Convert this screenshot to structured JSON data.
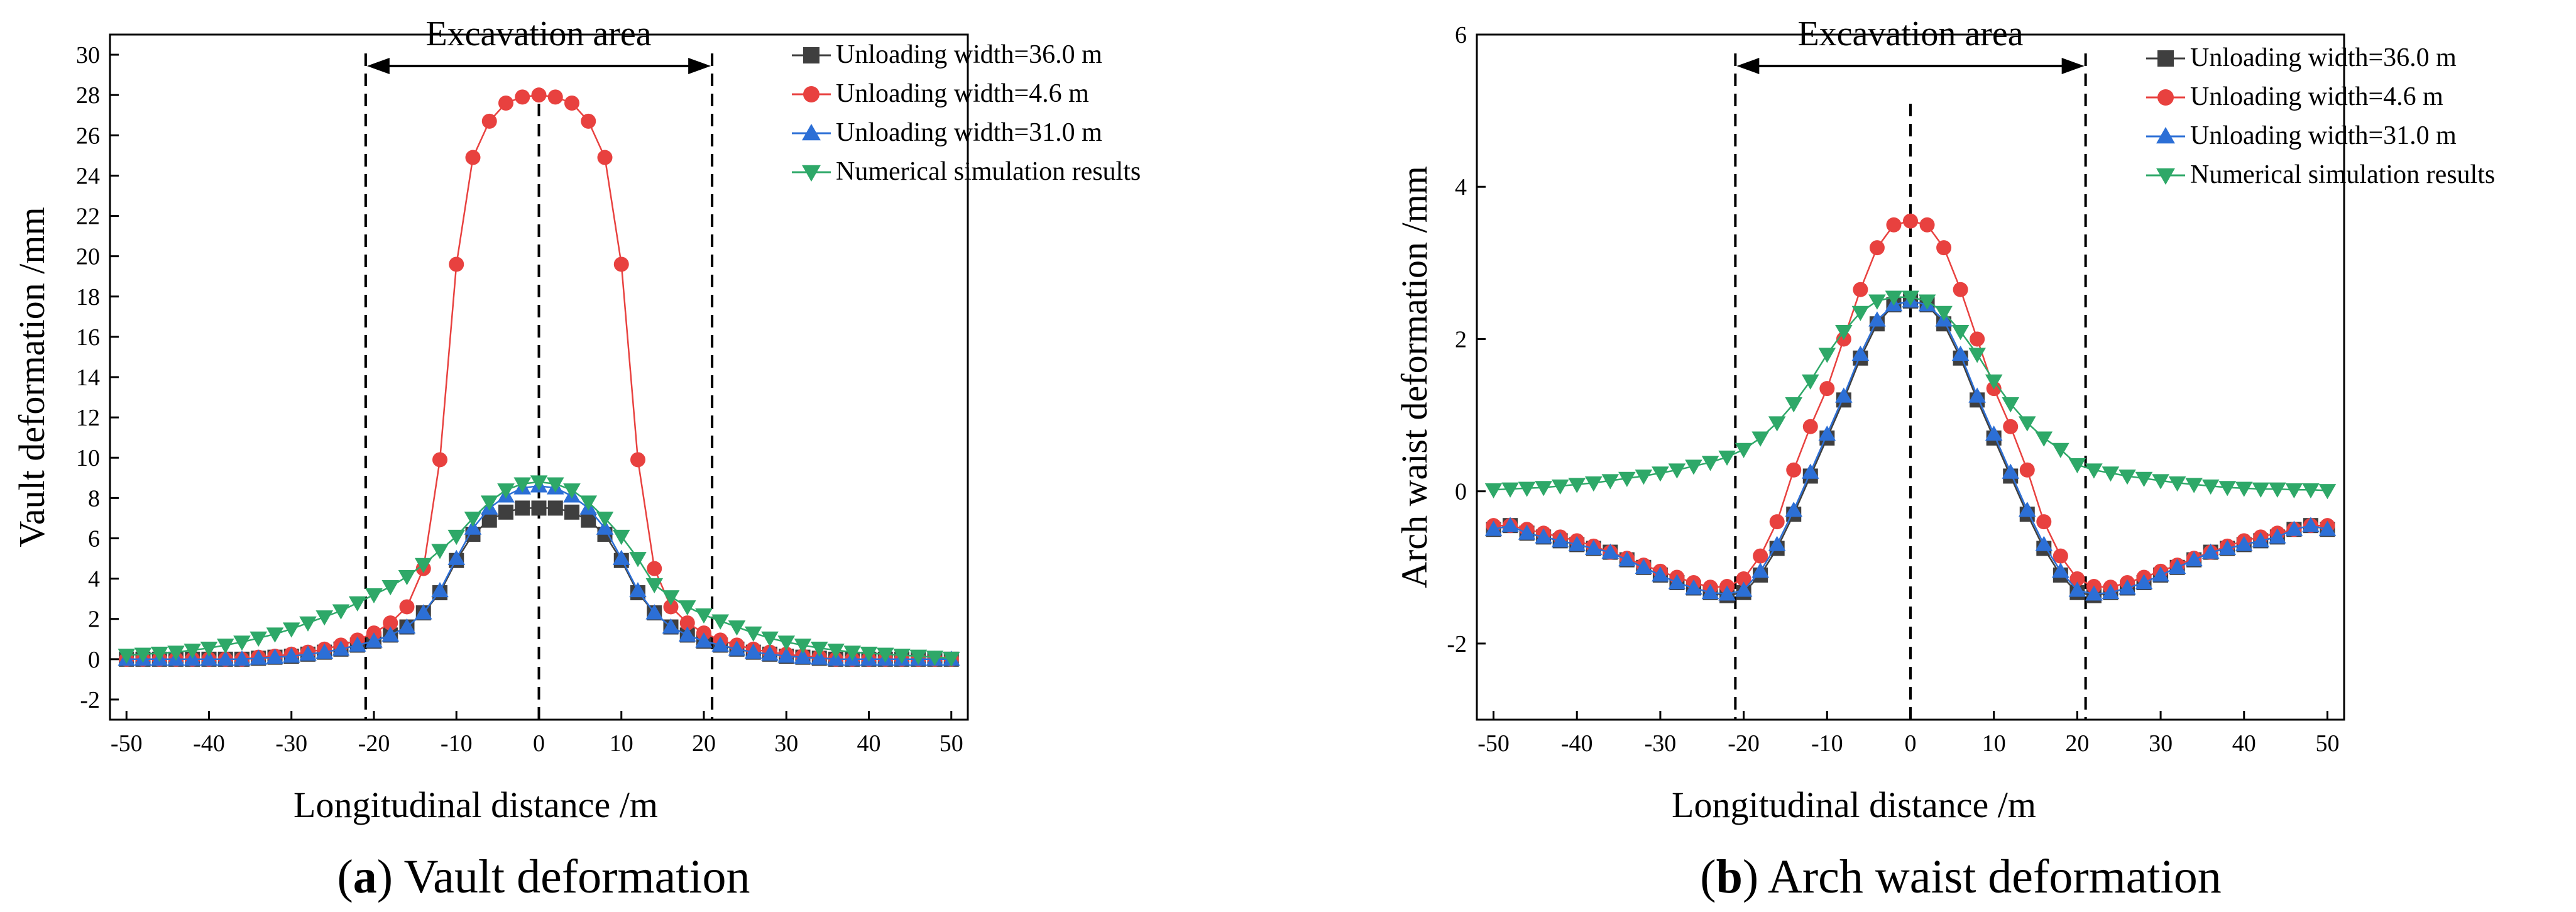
{
  "chart_data": [
    {
      "type": "line",
      "panel": "a",
      "caption_letter": "a",
      "caption_text": ") Vault deformation",
      "caption_open": "(",
      "xlabel": "Longitudinal distance /m",
      "ylabel": "Vault deformation /mm",
      "xlim": [
        -52,
        52
      ],
      "ylim": [
        -3,
        31
      ],
      "xticks": [
        "-50",
        "-40",
        "-30",
        "-20",
        "-10",
        "0",
        "10",
        "20",
        "30",
        "40",
        "50"
      ],
      "yticks": [
        "-2",
        "0",
        "2",
        "4",
        "6",
        "8",
        "10",
        "12",
        "14",
        "16",
        "18",
        "20",
        "22",
        "24",
        "26",
        "28",
        "30"
      ],
      "annotation": "Excavation area",
      "excavation_bounds": [
        -21,
        21
      ],
      "legend_position": "top-right",
      "series": [
        {
          "name": "Unloading width=36.0 m",
          "color": "#3f3f3f",
          "marker": "square",
          "x": [
            -50,
            -48,
            -46,
            -44,
            -42,
            -40,
            -38,
            -36,
            -34,
            -32,
            -30,
            -28,
            -26,
            -24,
            -22,
            -20,
            -18,
            -16,
            -14,
            -12,
            -10,
            -8,
            -6,
            -4,
            -2,
            0,
            2,
            4,
            6,
            8,
            10,
            12,
            14,
            16,
            18,
            20,
            22,
            24,
            26,
            28,
            30,
            32,
            34,
            36,
            38,
            40,
            42,
            44,
            46,
            48,
            50
          ],
          "values": [
            0,
            0,
            0,
            0,
            0,
            0,
            0,
            0,
            0.05,
            0.1,
            0.15,
            0.25,
            0.35,
            0.5,
            0.7,
            0.9,
            1.2,
            1.6,
            2.3,
            3.3,
            4.9,
            6.2,
            6.9,
            7.3,
            7.5,
            7.5,
            7.5,
            7.3,
            6.9,
            6.2,
            4.9,
            3.3,
            2.3,
            1.6,
            1.2,
            0.9,
            0.7,
            0.5,
            0.35,
            0.25,
            0.15,
            0.1,
            0.05,
            0,
            0,
            0,
            0,
            0,
            0,
            0,
            0
          ]
        },
        {
          "name": "Unloading width=4.6 m",
          "color": "#e8413f",
          "marker": "circle",
          "x": [
            -50,
            -48,
            -46,
            -44,
            -42,
            -40,
            -38,
            -36,
            -34,
            -32,
            -30,
            -28,
            -26,
            -24,
            -22,
            -20,
            -18,
            -16,
            -14,
            -12,
            -10,
            -8,
            -6,
            -4,
            -2,
            0,
            2,
            4,
            6,
            8,
            10,
            12,
            14,
            16,
            18,
            20,
            22,
            24,
            26,
            28,
            30,
            32,
            34,
            36,
            38,
            40,
            42,
            44,
            46,
            48,
            50
          ],
          "values": [
            0,
            0,
            0,
            0,
            0,
            0,
            0,
            0,
            0.1,
            0.15,
            0.25,
            0.35,
            0.5,
            0.7,
            0.95,
            1.3,
            1.8,
            2.6,
            4.5,
            9.9,
            19.6,
            24.9,
            26.7,
            27.6,
            27.9,
            28.0,
            27.9,
            27.6,
            26.7,
            24.9,
            19.6,
            9.9,
            4.5,
            2.6,
            1.8,
            1.3,
            0.95,
            0.7,
            0.5,
            0.35,
            0.25,
            0.15,
            0.1,
            0,
            0,
            0,
            0,
            0,
            0,
            0,
            0
          ]
        },
        {
          "name": "Unloading width=31.0 m",
          "color": "#2c6fd6",
          "marker": "triangle-up",
          "x": [
            -50,
            -48,
            -46,
            -44,
            -42,
            -40,
            -38,
            -36,
            -34,
            -32,
            -30,
            -28,
            -26,
            -24,
            -22,
            -20,
            -18,
            -16,
            -14,
            -12,
            -10,
            -8,
            -6,
            -4,
            -2,
            0,
            2,
            4,
            6,
            8,
            10,
            12,
            14,
            16,
            18,
            20,
            22,
            24,
            26,
            28,
            30,
            32,
            34,
            36,
            38,
            40,
            42,
            44,
            46,
            48,
            50
          ],
          "values": [
            0,
            0,
            0,
            0,
            0,
            0,
            0,
            0,
            0.05,
            0.1,
            0.15,
            0.25,
            0.35,
            0.5,
            0.7,
            0.9,
            1.2,
            1.6,
            2.3,
            3.4,
            5.0,
            6.5,
            7.5,
            8.1,
            8.5,
            8.6,
            8.5,
            8.1,
            7.5,
            6.5,
            5.0,
            3.4,
            2.3,
            1.6,
            1.2,
            0.9,
            0.7,
            0.5,
            0.35,
            0.25,
            0.15,
            0.1,
            0.05,
            0,
            0,
            0,
            0,
            0,
            0,
            0,
            0
          ]
        },
        {
          "name": "Numerical simulation results",
          "color": "#2ea868",
          "marker": "triangle-down",
          "x": [
            -50,
            -48,
            -46,
            -44,
            -42,
            -40,
            -38,
            -36,
            -34,
            -32,
            -30,
            -28,
            -26,
            -24,
            -22,
            -20,
            -18,
            -16,
            -14,
            -12,
            -10,
            -8,
            -6,
            -4,
            -2,
            0,
            2,
            4,
            6,
            8,
            10,
            12,
            14,
            16,
            18,
            20,
            22,
            24,
            26,
            28,
            30,
            32,
            34,
            36,
            38,
            40,
            42,
            44,
            46,
            48,
            50
          ],
          "values": [
            0.2,
            0.25,
            0.3,
            0.35,
            0.45,
            0.55,
            0.7,
            0.85,
            1.05,
            1.25,
            1.5,
            1.8,
            2.1,
            2.4,
            2.8,
            3.2,
            3.6,
            4.1,
            4.7,
            5.4,
            6.1,
            7.0,
            7.8,
            8.4,
            8.7,
            8.8,
            8.7,
            8.4,
            7.8,
            7.0,
            6.1,
            5.0,
            3.7,
            3.1,
            2.6,
            2.2,
            1.9,
            1.6,
            1.3,
            1.05,
            0.85,
            0.7,
            0.55,
            0.45,
            0.35,
            0.3,
            0.25,
            0.2,
            0.15,
            0.1,
            0.05
          ]
        }
      ]
    },
    {
      "type": "line",
      "panel": "b",
      "caption_letter": "b",
      "caption_text": ") Arch waist deformation",
      "caption_open": "(",
      "xlabel": "Longitudinal distance /m",
      "ylabel": "Arch waist deformation /mm",
      "xlim": [
        -52,
        52
      ],
      "ylim": [
        -3,
        6
      ],
      "xticks": [
        "-50",
        "-40",
        "-30",
        "-20",
        "-10",
        "0",
        "10",
        "20",
        "30",
        "40",
        "50"
      ],
      "yticks": [
        "-2",
        "0",
        "2",
        "4",
        "6"
      ],
      "annotation": "Excavation area",
      "excavation_bounds": [
        -21,
        21
      ],
      "legend_position": "top-right",
      "series": [
        {
          "name": "Unloading width=36.0 m",
          "color": "#3f3f3f",
          "marker": "square",
          "x": [
            -50,
            -48,
            -46,
            -44,
            -42,
            -40,
            -38,
            -36,
            -34,
            -32,
            -30,
            -28,
            -26,
            -24,
            -22,
            -20,
            -18,
            -16,
            -14,
            -12,
            -10,
            -8,
            -6,
            -4,
            -2,
            0,
            2,
            4,
            6,
            8,
            10,
            12,
            14,
            16,
            18,
            20,
            22,
            24,
            26,
            28,
            30,
            32,
            34,
            36,
            38,
            40,
            42,
            44,
            46,
            48,
            50
          ],
          "values": [
            -0.5,
            -0.45,
            -0.55,
            -0.6,
            -0.65,
            -0.7,
            -0.75,
            -0.8,
            -0.9,
            -1.0,
            -1.1,
            -1.2,
            -1.27,
            -1.33,
            -1.37,
            -1.33,
            -1.1,
            -0.75,
            -0.3,
            0.2,
            0.7,
            1.2,
            1.75,
            2.2,
            2.45,
            2.5,
            2.45,
            2.2,
            1.75,
            1.2,
            0.7,
            0.2,
            -0.3,
            -0.75,
            -1.1,
            -1.33,
            -1.37,
            -1.33,
            -1.27,
            -1.2,
            -1.1,
            -1.0,
            -0.9,
            -0.8,
            -0.75,
            -0.7,
            -0.65,
            -0.6,
            -0.5,
            -0.45,
            -0.5
          ]
        },
        {
          "name": "Unloading width=4.6 m",
          "color": "#e8413f",
          "marker": "circle",
          "x": [
            -50,
            -48,
            -46,
            -44,
            -42,
            -40,
            -38,
            -36,
            -34,
            -32,
            -30,
            -28,
            -26,
            -24,
            -22,
            -20,
            -18,
            -16,
            -14,
            -12,
            -10,
            -8,
            -6,
            -4,
            -2,
            0,
            2,
            4,
            6,
            8,
            10,
            12,
            14,
            16,
            18,
            20,
            22,
            24,
            26,
            28,
            30,
            32,
            34,
            36,
            38,
            40,
            42,
            44,
            46,
            48,
            50
          ],
          "values": [
            -0.45,
            -0.45,
            -0.5,
            -0.55,
            -0.6,
            -0.65,
            -0.72,
            -0.8,
            -0.88,
            -0.97,
            -1.05,
            -1.13,
            -1.2,
            -1.26,
            -1.25,
            -1.15,
            -0.85,
            -0.4,
            0.28,
            0.85,
            1.35,
            2.0,
            2.65,
            3.2,
            3.5,
            3.55,
            3.5,
            3.2,
            2.65,
            2.0,
            1.35,
            0.85,
            0.28,
            -0.4,
            -0.85,
            -1.15,
            -1.25,
            -1.26,
            -1.2,
            -1.13,
            -1.05,
            -0.97,
            -0.88,
            -0.8,
            -0.72,
            -0.65,
            -0.6,
            -0.55,
            -0.5,
            -0.45,
            -0.45
          ]
        },
        {
          "name": "Unloading width=31.0 m",
          "color": "#2c6fd6",
          "marker": "triangle-up",
          "x": [
            -50,
            -48,
            -46,
            -44,
            -42,
            -40,
            -38,
            -36,
            -34,
            -32,
            -30,
            -28,
            -26,
            -24,
            -22,
            -20,
            -18,
            -16,
            -14,
            -12,
            -10,
            -8,
            -6,
            -4,
            -2,
            0,
            2,
            4,
            6,
            8,
            10,
            12,
            14,
            16,
            18,
            20,
            22,
            24,
            26,
            28,
            30,
            32,
            34,
            36,
            38,
            40,
            42,
            44,
            46,
            48,
            50
          ],
          "values": [
            -0.5,
            -0.45,
            -0.55,
            -0.6,
            -0.65,
            -0.7,
            -0.75,
            -0.8,
            -0.9,
            -1.0,
            -1.1,
            -1.2,
            -1.27,
            -1.33,
            -1.35,
            -1.3,
            -1.05,
            -0.7,
            -0.25,
            0.25,
            0.75,
            1.25,
            1.8,
            2.25,
            2.45,
            2.5,
            2.45,
            2.25,
            1.8,
            1.25,
            0.75,
            0.25,
            -0.25,
            -0.7,
            -1.05,
            -1.3,
            -1.35,
            -1.33,
            -1.27,
            -1.2,
            -1.1,
            -1.0,
            -0.9,
            -0.8,
            -0.75,
            -0.7,
            -0.65,
            -0.6,
            -0.5,
            -0.45,
            -0.5
          ]
        },
        {
          "name": "Numerical simulation results",
          "color": "#2ea868",
          "marker": "triangle-down",
          "x": [
            -50,
            -48,
            -46,
            -44,
            -42,
            -40,
            -38,
            -36,
            -34,
            -32,
            -30,
            -28,
            -26,
            -24,
            -22,
            -20,
            -18,
            -16,
            -14,
            -12,
            -10,
            -8,
            -6,
            -4,
            -2,
            0,
            2,
            4,
            6,
            8,
            10,
            12,
            14,
            16,
            18,
            20,
            22,
            24,
            26,
            28,
            30,
            32,
            34,
            36,
            38,
            40,
            42,
            44,
            46,
            48,
            50
          ],
          "values": [
            0.02,
            0.03,
            0.04,
            0.05,
            0.07,
            0.09,
            0.11,
            0.14,
            0.17,
            0.2,
            0.24,
            0.28,
            0.33,
            0.38,
            0.45,
            0.55,
            0.7,
            0.9,
            1.15,
            1.45,
            1.8,
            2.1,
            2.35,
            2.5,
            2.55,
            2.55,
            2.5,
            2.35,
            2.1,
            1.8,
            1.45,
            1.15,
            0.9,
            0.7,
            0.55,
            0.35,
            0.28,
            0.24,
            0.2,
            0.17,
            0.14,
            0.11,
            0.09,
            0.07,
            0.05,
            0.04,
            0.03,
            0.03,
            0.02,
            0.02,
            0.01
          ]
        }
      ]
    }
  ]
}
